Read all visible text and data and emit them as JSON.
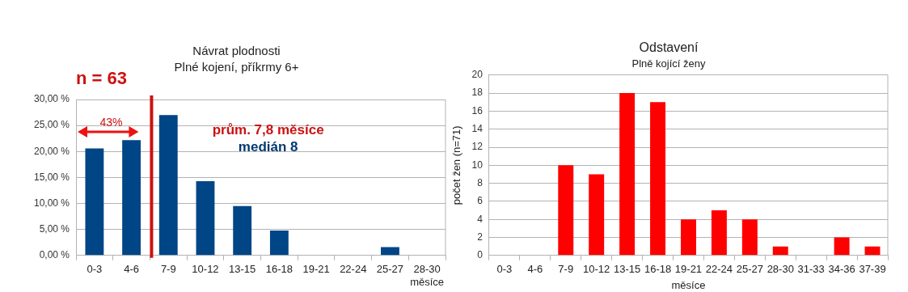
{
  "chart_data": [
    {
      "type": "bar",
      "title": "Návrat plodnosti",
      "subtitle": "Plné kojení, příkrmy 6+",
      "categories": [
        "0-3",
        "4-6",
        "7-9",
        "10-12",
        "13-15",
        "16-18",
        "19-21",
        "22-24",
        "25-27",
        "28-30 měsíce"
      ],
      "values": [
        20.6,
        22.2,
        27.0,
        14.3,
        9.5,
        4.8,
        0,
        0,
        1.6,
        0
      ],
      "color": "#004586",
      "ylim": [
        0,
        30
      ],
      "yticks": [
        {
          "value": 0,
          "label": "0,00 %"
        },
        {
          "value": 5,
          "label": "5,00 %"
        },
        {
          "value": 10,
          "label": "10,00 %"
        },
        {
          "value": 15,
          "label": "15,00 %"
        },
        {
          "value": 20,
          "label": "20,00 %"
        },
        {
          "value": 25,
          "label": "25,00 %"
        },
        {
          "value": 30,
          "label": "30,00 %"
        }
      ],
      "ref_lines": [
        {
          "axis": "x",
          "value": "7-9",
          "color": "#cc1111"
        }
      ],
      "annotations": [
        "n = 63",
        "43%",
        "prům. 7,8 měsíce",
        "medián 8"
      ],
      "grid": "y",
      "legend": false
    },
    {
      "type": "bar",
      "title": "Odstavení",
      "subtitle": "Plně kojící ženy",
      "xlabel": "měsíce",
      "ylabel": "počet žen (n=71)",
      "categories": [
        "0-3",
        "4-6",
        "7-9",
        "10-12",
        "13-15",
        "16-18",
        "19-21",
        "22-24",
        "25-27",
        "28-30",
        "31-33",
        "34-36",
        "37-39"
      ],
      "values": [
        0,
        0,
        10,
        9,
        18,
        17,
        4,
        5,
        4,
        1,
        0,
        2,
        1
      ],
      "color": "#ff0000",
      "ylim": [
        0,
        20
      ],
      "yticks": [
        0,
        2,
        4,
        6,
        8,
        10,
        12,
        14,
        16,
        18,
        20
      ],
      "grid": "y",
      "legend": false
    }
  ]
}
